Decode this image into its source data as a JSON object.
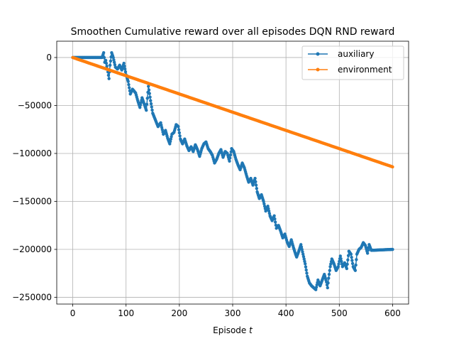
{
  "chart_data": {
    "type": "line",
    "title": "Smoothen Cumulative reward over all episodes DQN RND reward",
    "xlabel": "Episode",
    "xlabel_var": "t",
    "ylabel": "",
    "xlim": [
      -30,
      630
    ],
    "ylim": [
      -257000,
      17000
    ],
    "xticks": [
      0,
      100,
      200,
      300,
      400,
      500,
      600
    ],
    "yticks": [
      0,
      -50000,
      -100000,
      -150000,
      -200000,
      -250000
    ],
    "xtick_labels": [
      "0",
      "100",
      "200",
      "300",
      "400",
      "500",
      "600"
    ],
    "ytick_labels": [
      "0",
      "−50000",
      "−100000",
      "−150000",
      "−200000",
      "−250000"
    ],
    "grid": true,
    "legend_position": "upper right",
    "series": [
      {
        "name": "auxiliary",
        "color": "#1f77b4",
        "marker": "dot",
        "anchors": [
          [
            0,
            0
          ],
          [
            55,
            0
          ],
          [
            58,
            5000
          ],
          [
            60,
            -5000
          ],
          [
            62,
            -3000
          ],
          [
            66,
            -15000
          ],
          [
            68,
            -22000
          ],
          [
            70,
            -8000
          ],
          [
            73,
            5000
          ],
          [
            76,
            0
          ],
          [
            80,
            -10000
          ],
          [
            84,
            -12000
          ],
          [
            88,
            -8000
          ],
          [
            92,
            -13000
          ],
          [
            96,
            -6000
          ],
          [
            100,
            -18000
          ],
          [
            104,
            -25000
          ],
          [
            108,
            -38000
          ],
          [
            112,
            -33000
          ],
          [
            118,
            -37000
          ],
          [
            122,
            -45000
          ],
          [
            126,
            -52000
          ],
          [
            130,
            -42000
          ],
          [
            135,
            -50000
          ],
          [
            138,
            -55000
          ],
          [
            142,
            -30000
          ],
          [
            146,
            -45000
          ],
          [
            150,
            -58000
          ],
          [
            155,
            -65000
          ],
          [
            160,
            -72000
          ],
          [
            165,
            -68000
          ],
          [
            170,
            -80000
          ],
          [
            174,
            -76000
          ],
          [
            178,
            -84000
          ],
          [
            182,
            -90000
          ],
          [
            186,
            -80000
          ],
          [
            190,
            -78000
          ],
          [
            194,
            -70000
          ],
          [
            198,
            -72000
          ],
          [
            202,
            -85000
          ],
          [
            206,
            -90000
          ],
          [
            210,
            -85000
          ],
          [
            214,
            -92000
          ],
          [
            218,
            -97000
          ],
          [
            222,
            -93000
          ],
          [
            226,
            -98000
          ],
          [
            230,
            -91000
          ],
          [
            234,
            -96000
          ],
          [
            238,
            -103000
          ],
          [
            242,
            -95000
          ],
          [
            246,
            -90000
          ],
          [
            250,
            -88000
          ],
          [
            254,
            -95000
          ],
          [
            258,
            -98000
          ],
          [
            262,
            -102000
          ],
          [
            266,
            -110000
          ],
          [
            270,
            -106000
          ],
          [
            274,
            -100000
          ],
          [
            278,
            -96000
          ],
          [
            282,
            -104000
          ],
          [
            286,
            -98000
          ],
          [
            290,
            -100000
          ],
          [
            294,
            -108000
          ],
          [
            298,
            -95000
          ],
          [
            302,
            -98000
          ],
          [
            306,
            -106000
          ],
          [
            310,
            -112000
          ],
          [
            314,
            -117000
          ],
          [
            318,
            -110000
          ],
          [
            322,
            -115000
          ],
          [
            326,
            -123000
          ],
          [
            330,
            -130000
          ],
          [
            334,
            -126000
          ],
          [
            338,
            -133000
          ],
          [
            342,
            -126000
          ],
          [
            346,
            -140000
          ],
          [
            350,
            -147000
          ],
          [
            354,
            -143000
          ],
          [
            358,
            -150000
          ],
          [
            362,
            -160000
          ],
          [
            366,
            -155000
          ],
          [
            370,
            -165000
          ],
          [
            374,
            -170000
          ],
          [
            378,
            -165000
          ],
          [
            382,
            -178000
          ],
          [
            386,
            -175000
          ],
          [
            390,
            -181000
          ],
          [
            394,
            -188000
          ],
          [
            398,
            -184000
          ],
          [
            402,
            -192000
          ],
          [
            406,
            -197000
          ],
          [
            410,
            -190000
          ],
          [
            414,
            -198000
          ],
          [
            418,
            -205000
          ],
          [
            420,
            -208000
          ],
          [
            424,
            -202000
          ],
          [
            428,
            -195000
          ],
          [
            432,
            -205000
          ],
          [
            436,
            -215000
          ],
          [
            440,
            -228000
          ],
          [
            444,
            -235000
          ],
          [
            448,
            -238000
          ],
          [
            452,
            -240000
          ],
          [
            456,
            -242000
          ],
          [
            460,
            -232000
          ],
          [
            464,
            -238000
          ],
          [
            468,
            -232000
          ],
          [
            472,
            -226000
          ],
          [
            476,
            -234000
          ],
          [
            478,
            -240000
          ],
          [
            480,
            -230000
          ],
          [
            483,
            -218000
          ],
          [
            486,
            -210000
          ],
          [
            490,
            -215000
          ],
          [
            494,
            -222000
          ],
          [
            498,
            -218000
          ],
          [
            502,
            -207000
          ],
          [
            506,
            -218000
          ],
          [
            510,
            -214000
          ],
          [
            514,
            -220000
          ],
          [
            518,
            -202000
          ],
          [
            522,
            -205000
          ],
          [
            526,
            -218000
          ],
          [
            530,
            -222000
          ],
          [
            533,
            -205000
          ],
          [
            537,
            -200000
          ],
          [
            541,
            -198000
          ],
          [
            545,
            -193000
          ],
          [
            549,
            -196000
          ],
          [
            553,
            -204000
          ],
          [
            556,
            -195000
          ],
          [
            560,
            -201000
          ],
          [
            600,
            -200000
          ]
        ]
      },
      {
        "name": "environment",
        "color": "#ff7f0e",
        "marker": "dot",
        "anchors": [
          [
            0,
            0
          ],
          [
            600,
            -114000
          ]
        ]
      }
    ]
  }
}
